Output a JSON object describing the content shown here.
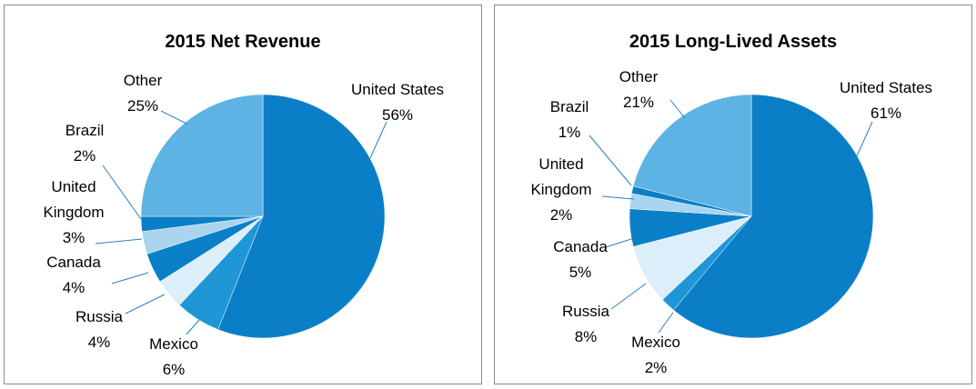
{
  "chart_data": [
    {
      "type": "pie",
      "title": "2015 Net Revenue",
      "slices": [
        {
          "label": "United States",
          "value": 56,
          "pct_text": "56%",
          "color": "#0a7fc8"
        },
        {
          "label": "Mexico",
          "value": 6,
          "pct_text": "6%",
          "color": "#1f97d6"
        },
        {
          "label": "Russia",
          "value": 4,
          "pct_text": "4%",
          "color": "#dbeef9"
        },
        {
          "label": "Canada",
          "value": 4,
          "pct_text": "4%",
          "color": "#0a7fc8"
        },
        {
          "label": "United Kingdom",
          "value": 3,
          "pct_text": "3%",
          "color": "#a9d4ee"
        },
        {
          "label": "Brazil",
          "value": 2,
          "pct_text": "2%",
          "color": "#0a7fc8"
        },
        {
          "label": "Other",
          "value": 25,
          "pct_text": "25%",
          "color": "#5db3e3"
        }
      ]
    },
    {
      "type": "pie",
      "title": "2015 Long-Lived Assets",
      "slices": [
        {
          "label": "United States",
          "value": 61,
          "pct_text": "61%",
          "color": "#0a7fc8"
        },
        {
          "label": "Mexico",
          "value": 2,
          "pct_text": "2%",
          "color": "#1f97d6"
        },
        {
          "label": "Russia",
          "value": 8,
          "pct_text": "8%",
          "color": "#dbeef9"
        },
        {
          "label": "Canada",
          "value": 5,
          "pct_text": "5%",
          "color": "#0a7fc8"
        },
        {
          "label": "United Kingdom",
          "value": 2,
          "pct_text": "2%",
          "color": "#a9d4ee"
        },
        {
          "label": "Brazil",
          "value": 1,
          "pct_text": "1%",
          "color": "#0a7fc8"
        },
        {
          "label": "Other",
          "value": 21,
          "pct_text": "21%",
          "color": "#5db3e3"
        }
      ]
    }
  ]
}
